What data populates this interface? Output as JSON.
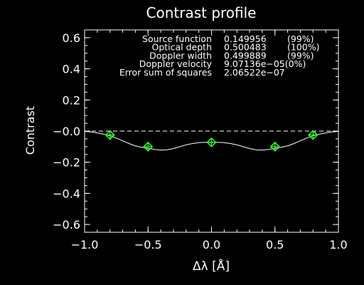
{
  "chart_data": {
    "type": "line",
    "title": "Contrast profile",
    "xlabel": "Δλ [Å]",
    "ylabel": "Contrast",
    "xlim": [
      -1.0,
      1.0
    ],
    "ylim": [
      -0.65,
      0.65
    ],
    "x_ticks": [
      -1.0,
      -0.5,
      0.0,
      0.5,
      1.0
    ],
    "x_tick_labels": [
      "−1.0",
      "−0.5",
      "0.0",
      "0.5",
      "1.0"
    ],
    "y_ticks": [
      0.6,
      0.4,
      0.2,
      0.0,
      -0.2,
      -0.4,
      -0.6
    ],
    "y_tick_labels": [
      "0.6",
      "0.4",
      "0.2",
      "−0.0",
      "−0.2",
      "−0.4",
      "−0.6"
    ],
    "reference_line": {
      "y": 0.0,
      "style": "dashed"
    },
    "series": [
      {
        "kind": "fit-curve",
        "color": "#ffffff",
        "x": [
          -1.0,
          -0.95,
          -0.9,
          -0.85,
          -0.8,
          -0.75,
          -0.7,
          -0.65,
          -0.6,
          -0.55,
          -0.5,
          -0.45,
          -0.4,
          -0.35,
          -0.3,
          -0.25,
          -0.2,
          -0.15,
          -0.1,
          -0.05,
          0.0,
          0.05,
          0.1,
          0.15,
          0.2,
          0.25,
          0.3,
          0.35,
          0.4,
          0.45,
          0.5,
          0.55,
          0.6,
          0.65,
          0.7,
          0.75,
          0.8,
          0.85,
          0.9,
          0.95,
          1.0
        ],
        "y": [
          -0.002,
          -0.005,
          -0.012,
          -0.02,
          -0.03,
          -0.045,
          -0.062,
          -0.08,
          -0.095,
          -0.104,
          -0.11,
          -0.118,
          -0.122,
          -0.12,
          -0.112,
          -0.1,
          -0.088,
          -0.08,
          -0.074,
          -0.072,
          -0.072,
          -0.072,
          -0.074,
          -0.08,
          -0.088,
          -0.1,
          -0.112,
          -0.12,
          -0.122,
          -0.118,
          -0.11,
          -0.104,
          -0.095,
          -0.08,
          -0.062,
          -0.045,
          -0.03,
          -0.02,
          -0.012,
          -0.005,
          -0.002
        ]
      },
      {
        "kind": "observed-points",
        "marker": "diamond-cross",
        "color": "#33ff33",
        "x": [
          -0.8,
          -0.5,
          0.0,
          0.5,
          0.8
        ],
        "y": [
          -0.025,
          -0.1,
          -0.072,
          -0.1,
          -0.025
        ]
      }
    ]
  },
  "fit_results": [
    {
      "label": "Source function",
      "value": "0.149956",
      "pct": "(99%)"
    },
    {
      "label": "Optical depth",
      "value": "0.500483",
      "pct": "(100%)"
    },
    {
      "label": "Doppler width",
      "value": "0.499889",
      "pct": "(99%)"
    },
    {
      "label": "Doppler velocity",
      "value": "9.07136e−05(0%)",
      "pct": ""
    },
    {
      "label": "Error sum of squares",
      "value": "2.06522e−07",
      "pct": ""
    }
  ]
}
